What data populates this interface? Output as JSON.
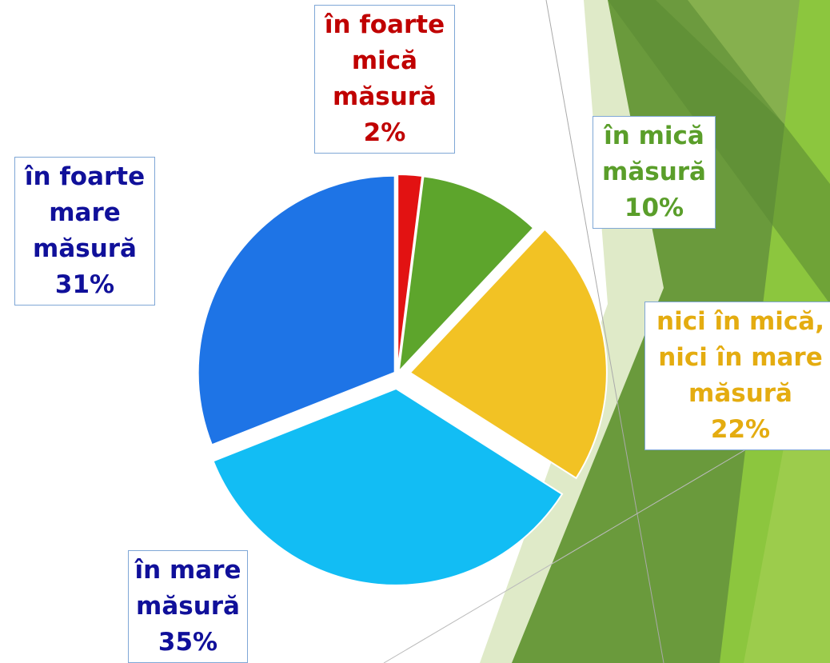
{
  "chart_data": {
    "type": "pie",
    "categories": [
      "în foarte mică măsură",
      "în mică măsură",
      "nici în mică, nici în mare măsură",
      "în mare măsură",
      "în foarte mare măsură"
    ],
    "values": [
      2,
      10,
      22,
      35,
      31
    ],
    "value_labels": [
      "2%",
      "10%",
      "22%",
      "35%",
      "31%"
    ],
    "colors": [
      "#e21212",
      "#5da52c",
      "#f2c224",
      "#12bdf4",
      "#1e74e6"
    ],
    "label_colors": [
      "#c00000",
      "#5a9e2a",
      "#e4ac10",
      "#10109a",
      "#10109a"
    ]
  }
}
